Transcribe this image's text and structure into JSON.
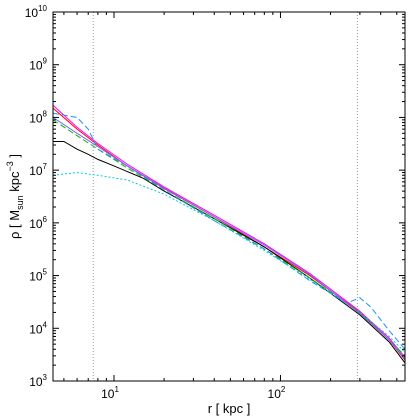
{
  "chart_data": {
    "type": "line",
    "title": "",
    "xlabel": "r [ kpc ]",
    "ylabel": {
      "prefix": "ρ  [ M",
      "sub": "sun",
      "mid": " kpc",
      "sup": "−3",
      "suffix": " ]"
    },
    "xscale": "log",
    "yscale": "log",
    "xlim": [
      4.3,
      560
    ],
    "ylim": [
      1000,
      10000000000
    ],
    "x_ticks": [
      {
        "value": 10,
        "base": "10",
        "exp": "1"
      },
      {
        "value": 100,
        "base": "10",
        "exp": "2"
      }
    ],
    "y_ticks": [
      {
        "value": 1000,
        "base": "10",
        "exp": "3"
      },
      {
        "value": 10000,
        "base": "10",
        "exp": "4"
      },
      {
        "value": 100000,
        "base": "10",
        "exp": "5"
      },
      {
        "value": 1000000,
        "base": "10",
        "exp": "6"
      },
      {
        "value": 10000000,
        "base": "10",
        "exp": "7"
      },
      {
        "value": 100000000,
        "base": "10",
        "exp": "8"
      },
      {
        "value": 1000000000,
        "base": "10",
        "exp": "9"
      },
      {
        "value": 10000000000,
        "base": "10",
        "exp": "10"
      }
    ],
    "reference_lines_x": [
      7.5,
      290
    ],
    "grid": false,
    "legend": "none",
    "series": [
      {
        "color": "#ff0000",
        "dash": "solid",
        "x": [
          4.3,
          6,
          8,
          12,
          20,
          40,
          80,
          150,
          300,
          450,
          560
        ],
        "y": [
          150000000,
          60000000,
          30000000,
          12000000,
          4500000,
          1300000,
          350000,
          100000,
          20000,
          6000,
          2500
        ]
      },
      {
        "color": "#ff00ff",
        "dash": "solid",
        "x": [
          4.3,
          6,
          8,
          12,
          20,
          40,
          80,
          150,
          300,
          450,
          560
        ],
        "y": [
          170000000,
          65000000,
          32000000,
          13000000,
          4800000,
          1400000,
          400000,
          110000,
          21000,
          6500,
          2800
        ]
      },
      {
        "color": "#000000",
        "dash": "solid",
        "x": [
          4.3,
          5,
          6,
          7,
          8,
          10,
          15,
          20,
          40,
          80,
          150,
          300,
          450,
          560
        ],
        "y": [
          35000000,
          35000000,
          25000000,
          20000000,
          16000000,
          12000000,
          7000000,
          4000000,
          1200000,
          350000,
          90000,
          18000,
          5500,
          2200
        ]
      },
      {
        "color": "#00bb00",
        "dash": "dashed",
        "x": [
          4.3,
          6,
          8,
          12,
          20,
          40,
          80,
          150,
          300,
          450,
          560
        ],
        "y": [
          90000000,
          45000000,
          25000000,
          11000000,
          4200000,
          1200000,
          320000,
          90000,
          20000,
          6000,
          3000
        ]
      },
      {
        "color": "#1e90ff",
        "dash": "dashed",
        "x": [
          4.3,
          6,
          7,
          8,
          12,
          20,
          40,
          80,
          150,
          250,
          300,
          350,
          450,
          560
        ],
        "y": [
          120000000,
          100000000,
          60000000,
          25000000,
          12000000,
          4200000,
          1100000,
          320000,
          80000,
          30000,
          38000,
          25000,
          9000,
          4000
        ]
      },
      {
        "color": "#00ced1",
        "dash": "dotted",
        "x": [
          4.3,
          6,
          8,
          12,
          20,
          40,
          80,
          150,
          300,
          450,
          560
        ],
        "y": [
          8000000,
          9000000,
          8000000,
          6500000,
          3500000,
          1100000,
          300000,
          85000,
          20000,
          7000,
          3500
        ]
      },
      {
        "color": "#7b68ee",
        "dash": "solid",
        "x": [
          4.3,
          6,
          8,
          12,
          20,
          40,
          80,
          150,
          300,
          450,
          560
        ],
        "y": [
          100000000,
          50000000,
          28000000,
          12000000,
          4600000,
          1300000,
          380000,
          105000,
          19000,
          6000,
          2600
        ]
      }
    ]
  }
}
